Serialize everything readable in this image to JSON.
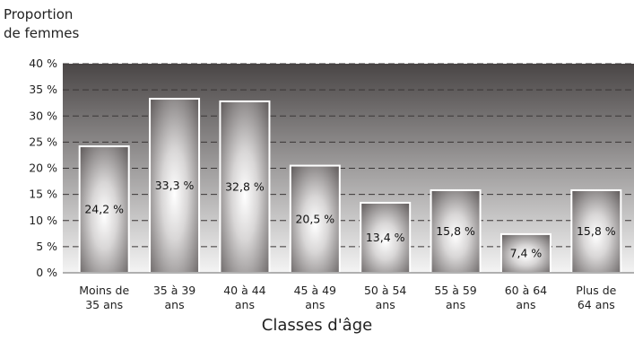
{
  "chart_data": {
    "type": "bar",
    "ylabel": "Proportion\nde femmes",
    "xlabel": "Classes d'âge",
    "categories": [
      "Moins de\n35 ans",
      "35 à 39\nans",
      "40 à 44\nans",
      "45 à 49\nans",
      "50 à 54\nans",
      "55 à 59\nans",
      "60 à 64\nans",
      "Plus de\n64 ans"
    ],
    "values": [
      24.2,
      33.3,
      32.8,
      20.5,
      13.4,
      15.8,
      7.4,
      15.8
    ],
    "value_labels": [
      "24,2 %",
      "33,3 %",
      "32,8 %",
      "20,5 %",
      "13,4 %",
      "15,8 %",
      "7,4 %",
      "15,8 %"
    ],
    "yticks": [
      0,
      5,
      10,
      15,
      20,
      25,
      30,
      35,
      40
    ],
    "ytick_labels": [
      "0 %",
      "5 %",
      "10 %",
      "15 %",
      "20 %",
      "25 %",
      "30 %",
      "35 %",
      "40 %"
    ],
    "ylim": [
      0,
      40
    ],
    "grid": true,
    "colors": {
      "bg_top": "#4a4646",
      "bg_bottom": "#f4f4f4",
      "bar_edge": "#5a5555",
      "bar_center": "#ffffff",
      "grid": "#3a3636"
    }
  }
}
